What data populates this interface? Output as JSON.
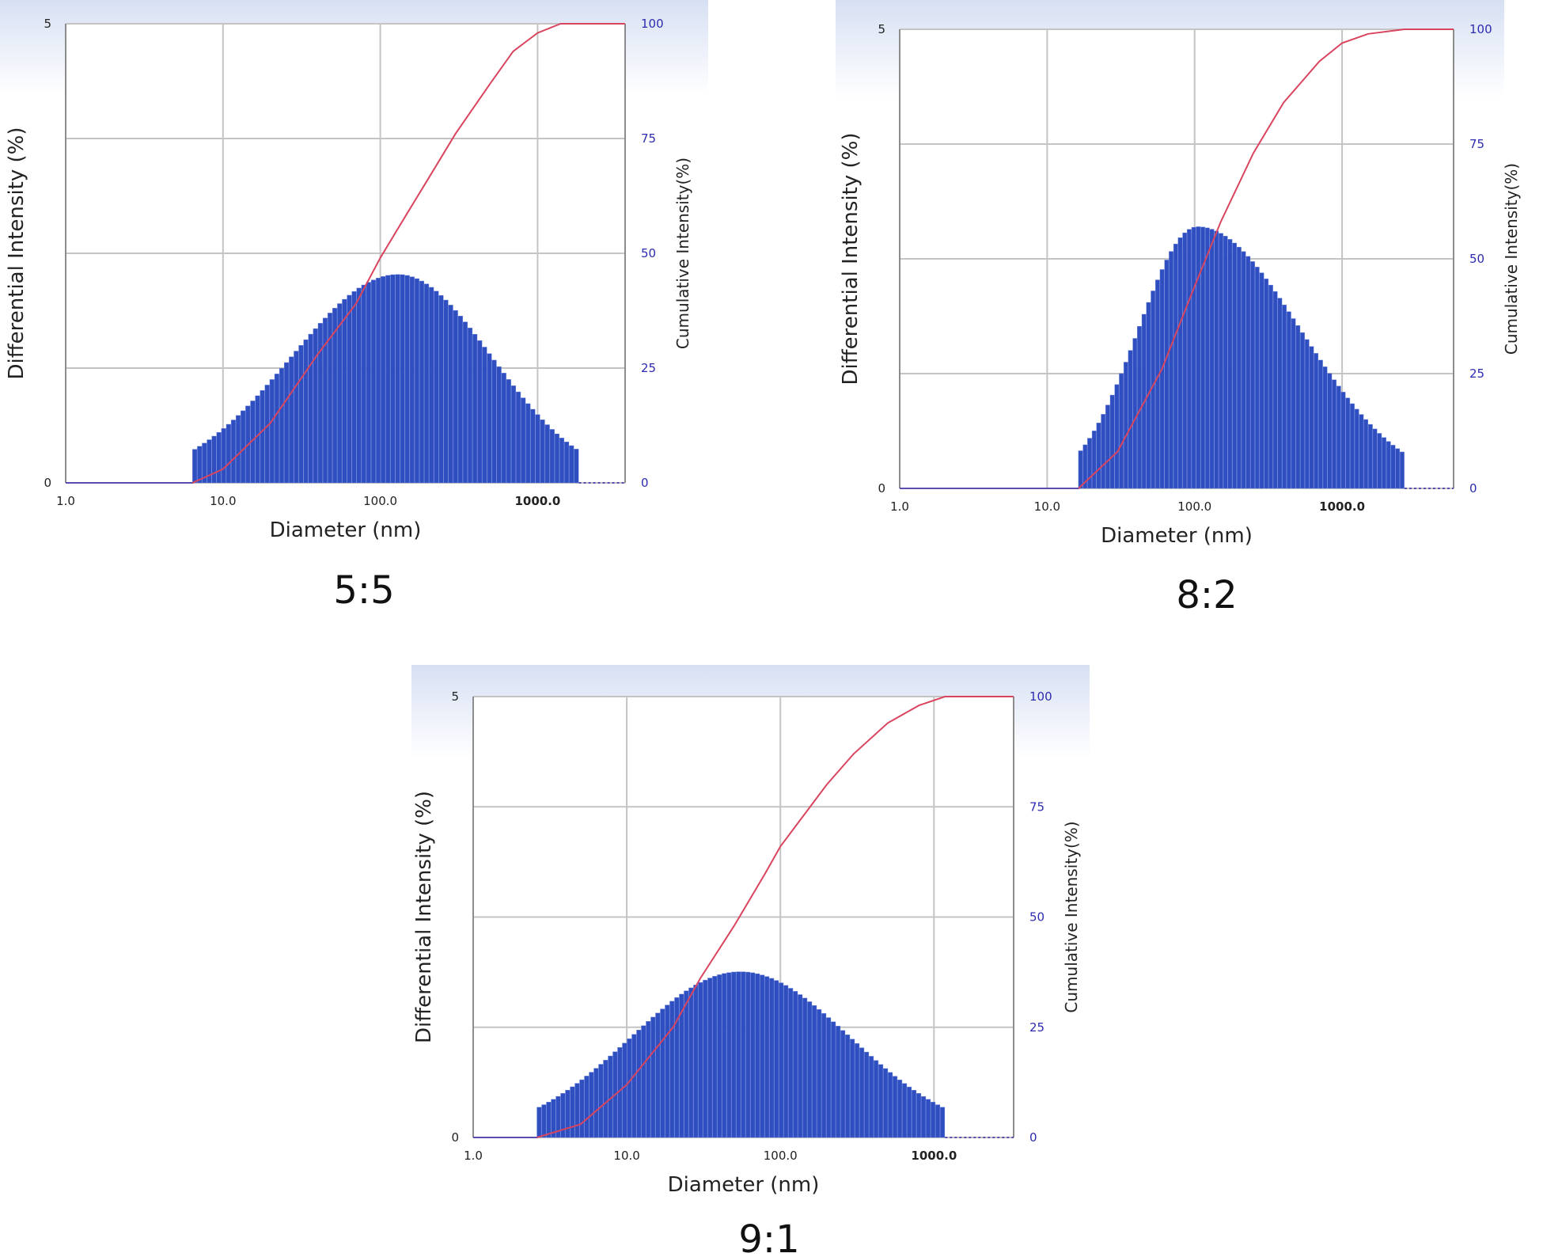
{
  "figure": {
    "colors": {
      "bars": "#2f4fc0",
      "bar_edge": "#6d85dd",
      "cumulative_line": "#d9445e",
      "grid": "#c4c4c4",
      "frame": "#8c8c8c",
      "right_axis_text": "#2d2bb0",
      "header_band": "#dde5f5"
    }
  },
  "chart_data": [
    {
      "type": "bar",
      "caption": "5:5",
      "xlabel": "Diameter (nm)",
      "ylabel": "Differential Intensity (%)",
      "y2label": "Cumulative Intensity(%)",
      "x_scale": "log",
      "xlim": [
        1.0,
        3600
      ],
      "x_ticks": [
        "1.0",
        "10.0",
        "100.0",
        "1000.0"
      ],
      "ylim": [
        0,
        5
      ],
      "y_ticks": [
        "0",
        "5"
      ],
      "y2lim": [
        0,
        100
      ],
      "y2_ticks": [
        "0",
        "25",
        "50",
        "75",
        "100"
      ],
      "grid": true,
      "bars_x_range": [
        6.4,
        1830
      ],
      "bar_count": 80,
      "peak_diameter": 130,
      "peak_value": 2.27,
      "edge_value": 0.35,
      "cumulative_series": {
        "name": "Cumulative Intensity",
        "x": [
          1.0,
          6.4,
          10,
          20,
          40,
          70,
          100,
          150,
          200,
          300,
          500,
          700,
          1000,
          1400,
          1830,
          3600
        ],
        "y": [
          0,
          0,
          3,
          13,
          28,
          39,
          49,
          59,
          66,
          76,
          87,
          94,
          98,
          100,
          100,
          100
        ]
      }
    },
    {
      "type": "bar",
      "caption": "8:2",
      "xlabel": "Diameter (nm)",
      "ylabel": "Differential Intensity (%)",
      "y2label": "Cumulative Intensity(%)",
      "x_scale": "log",
      "xlim": [
        1.0,
        5700
      ],
      "x_ticks": [
        "1.0",
        "10.0",
        "100.0",
        "1000.0"
      ],
      "ylim": [
        0,
        5
      ],
      "y_ticks": [
        "0",
        "5"
      ],
      "y2lim": [
        0,
        100
      ],
      "y2_ticks": [
        "0",
        "25",
        "50",
        "75",
        "100"
      ],
      "grid": true,
      "bars_x_range": [
        16.3,
        2650
      ],
      "bar_count": 72,
      "peak_diameter": 105,
      "peak_value": 2.85,
      "edge_value": 0.38,
      "cumulative_series": {
        "name": "Cumulative Intensity",
        "x": [
          1.0,
          16.3,
          30,
          60,
          100,
          150,
          250,
          400,
          700,
          1000,
          1500,
          2650,
          5700
        ],
        "y": [
          0,
          0,
          8,
          26,
          44,
          58,
          73,
          84,
          93,
          97,
          99,
          100,
          100
        ]
      }
    },
    {
      "type": "bar",
      "caption": "9:1",
      "xlabel": "Diameter (nm)",
      "ylabel": "Differential Intensity (%)",
      "y2label": "Cumulative Intensity(%)",
      "x_scale": "log",
      "xlim": [
        1.0,
        3300
      ],
      "x_ticks": [
        "1.0",
        "10.0",
        "100.0",
        "1000.0"
      ],
      "ylim": [
        0,
        5
      ],
      "y_ticks": [
        "0",
        "5"
      ],
      "y2lim": [
        0,
        100
      ],
      "y2_ticks": [
        "0",
        "25",
        "50",
        "75",
        "100"
      ],
      "grid": true,
      "bars_x_range": [
        2.6,
        1180
      ],
      "bar_count": 86,
      "peak_diameter": 55,
      "peak_value": 1.88,
      "edge_value": 0.33,
      "cumulative_series": {
        "name": "Cumulative Intensity",
        "x": [
          1.0,
          2.6,
          5,
          10,
          20,
          30,
          50,
          80,
          100,
          200,
          300,
          500,
          800,
          1180,
          3300
        ],
        "y": [
          0,
          0,
          3,
          12,
          25,
          36,
          48,
          60,
          66,
          80,
          87,
          94,
          98,
          100,
          100
        ]
      }
    }
  ]
}
